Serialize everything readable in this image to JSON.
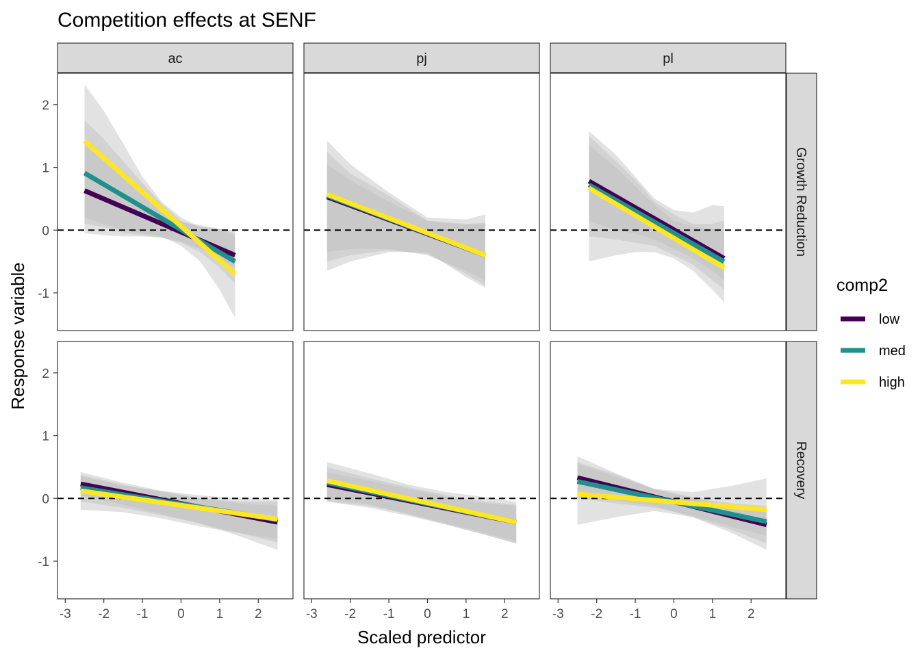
{
  "chart_data": {
    "type": "line",
    "title": "Competition effects at SENF",
    "xlabel": "Scaled predictor",
    "ylabel": "Response variable",
    "xlim": [
      -3.2,
      2.9
    ],
    "ylim": [
      -1.6,
      2.5
    ],
    "x_ticks": [
      -3,
      -2,
      -1,
      0,
      1,
      2
    ],
    "y_ticks": [
      -1,
      0,
      1,
      2
    ],
    "x_tick_labels": [
      "-3",
      "-2",
      "-1",
      "0",
      "1",
      "2"
    ],
    "y_tick_labels": [
      "-1",
      "0",
      "1",
      "2"
    ],
    "reference_line_y": 0,
    "grid": false,
    "facet_columns": [
      "ac",
      "pj",
      "pl"
    ],
    "facet_rows": [
      "Growth Reduction",
      "Recovery"
    ],
    "legend": {
      "title": "comp2",
      "placement": "right",
      "entries": [
        {
          "name": "low",
          "color": "#440154"
        },
        {
          "name": "med",
          "color": "#21908C"
        },
        {
          "name": "high",
          "color": "#FDE725"
        }
      ]
    },
    "band_color": "#bebebe",
    "panels": [
      {
        "column": "ac",
        "row": "Growth Reduction",
        "series": [
          {
            "name": "low",
            "x": [
              -2.5,
              1.4
            ],
            "y": [
              0.63,
              -0.4
            ],
            "band": {
              "x": [
                -2.5,
                -2.0,
                -1.5,
                -1.0,
                -0.5,
                0,
                0.5,
                1.0,
                1.4
              ],
              "lower": [
                -0.05,
                -0.08,
                -0.1,
                -0.1,
                -0.12,
                -0.18,
                -0.3,
                -0.45,
                -0.6
              ],
              "upper": [
                1.35,
                1.1,
                0.85,
                0.6,
                0.35,
                0.12,
                0.08,
                0.02,
                -0.05
              ]
            }
          },
          {
            "name": "med",
            "x": [
              -2.5,
              1.4
            ],
            "y": [
              0.91,
              -0.5
            ],
            "band": {
              "x": [
                -2.5,
                -2.0,
                -1.5,
                -1.0,
                -0.5,
                0,
                0.5,
                1.0,
                1.4
              ],
              "lower": [
                0.1,
                0.05,
                -0.05,
                -0.08,
                -0.12,
                -0.2,
                -0.35,
                -0.6,
                -0.85
              ],
              "upper": [
                1.75,
                1.45,
                1.1,
                0.75,
                0.42,
                0.15,
                0.05,
                0.0,
                -0.1
              ]
            }
          },
          {
            "name": "high",
            "x": [
              -2.5,
              1.4
            ],
            "y": [
              1.42,
              -0.7
            ],
            "band": {
              "x": [
                -2.5,
                -2.0,
                -1.5,
                -1.0,
                -0.5,
                0,
                0.5,
                1.0,
                1.4
              ],
              "lower": [
                0.2,
                0.1,
                0.0,
                -0.05,
                -0.1,
                -0.25,
                -0.5,
                -0.95,
                -1.4
              ],
              "upper": [
                2.32,
                1.9,
                1.38,
                0.85,
                0.45,
                0.2,
                0.05,
                0.02,
                0.0
              ]
            }
          }
        ]
      },
      {
        "column": "pj",
        "row": "Growth Reduction",
        "series": [
          {
            "name": "low",
            "x": [
              -2.6,
              1.5
            ],
            "y": [
              0.53,
              -0.4
            ],
            "band": {
              "x": [
                -2.6,
                -2.0,
                -1.0,
                0,
                1.0,
                1.5
              ],
              "lower": [
                -0.35,
                -0.3,
                -0.3,
                -0.4,
                -0.65,
                -0.8
              ],
              "upper": [
                1.05,
                0.8,
                0.45,
                0.15,
                0.08,
                0.1
              ]
            }
          },
          {
            "name": "med",
            "x": [
              -2.6,
              1.5
            ],
            "y": [
              0.55,
              -0.4
            ],
            "band": {
              "x": [
                -2.6,
                -2.0,
                -1.0,
                0,
                1.0,
                1.5
              ],
              "lower": [
                -0.5,
                -0.4,
                -0.32,
                -0.38,
                -0.7,
                -0.88
              ],
              "upper": [
                1.25,
                0.9,
                0.55,
                0.15,
                0.1,
                0.12
              ]
            }
          },
          {
            "name": "high",
            "x": [
              -2.6,
              1.5
            ],
            "y": [
              0.57,
              -0.4
            ],
            "band": {
              "x": [
                -2.6,
                -2.0,
                -1.0,
                0,
                1.0,
                1.5
              ],
              "lower": [
                -0.65,
                -0.5,
                -0.35,
                -0.35,
                -0.75,
                -0.92
              ],
              "upper": [
                1.43,
                1.05,
                0.6,
                0.2,
                0.17,
                0.25
              ]
            }
          }
        ]
      },
      {
        "column": "pl",
        "row": "Growth Reduction",
        "series": [
          {
            "name": "low",
            "x": [
              -2.2,
              1.3
            ],
            "y": [
              0.78,
              -0.45
            ],
            "band": {
              "x": [
                -2.2,
                -1.5,
                -1.0,
                -0.5,
                0,
                0.5,
                1.0,
                1.3
              ],
              "lower": [
                0.15,
                0.0,
                -0.05,
                -0.15,
                -0.3,
                -0.45,
                -0.65,
                -0.8
              ],
              "upper": [
                1.35,
                1.0,
                0.7,
                0.4,
                0.15,
                0.05,
                0.02,
                0.0
              ]
            }
          },
          {
            "name": "med",
            "x": [
              -2.2,
              1.3
            ],
            "y": [
              0.72,
              -0.5
            ],
            "band": {
              "x": [
                -2.2,
                -1.5,
                -1.0,
                -0.5,
                0,
                0.5,
                1.0,
                1.3
              ],
              "lower": [
                -0.1,
                -0.15,
                -0.2,
                -0.25,
                -0.4,
                -0.55,
                -0.8,
                -0.95
              ],
              "upper": [
                1.5,
                1.1,
                0.8,
                0.45,
                0.25,
                0.1,
                0.1,
                0.15
              ]
            }
          },
          {
            "name": "high",
            "x": [
              -2.2,
              1.3
            ],
            "y": [
              0.67,
              -0.6
            ],
            "band": {
              "x": [
                -2.2,
                -1.5,
                -1.0,
                -0.5,
                0,
                0.5,
                1.0,
                1.3
              ],
              "lower": [
                -0.5,
                -0.4,
                -0.35,
                -0.35,
                -0.45,
                -0.65,
                -0.95,
                -1.15
              ],
              "upper": [
                1.58,
                1.2,
                0.85,
                0.5,
                0.32,
                0.28,
                0.4,
                0.38
              ]
            }
          }
        ]
      },
      {
        "column": "ac",
        "row": "Recovery",
        "series": [
          {
            "name": "low",
            "x": [
              -2.6,
              2.5
            ],
            "y": [
              0.23,
              -0.38
            ],
            "band": {
              "x": [
                -2.6,
                -1.5,
                -0.5,
                0.5,
                1.5,
                2.5
              ],
              "lower": [
                0.05,
                -0.1,
                -0.25,
                -0.4,
                -0.6,
                -0.82
              ],
              "upper": [
                0.42,
                0.25,
                0.12,
                0.0,
                -0.08,
                -0.12
              ]
            }
          },
          {
            "name": "med",
            "x": [
              -2.6,
              2.5
            ],
            "y": [
              0.17,
              -0.34
            ],
            "band": {
              "x": [
                -2.6,
                -1.5,
                -0.5,
                0.5,
                1.5,
                2.5
              ],
              "lower": [
                -0.05,
                -0.15,
                -0.27,
                -0.4,
                -0.55,
                -0.7
              ],
              "upper": [
                0.38,
                0.22,
                0.1,
                0.0,
                -0.05,
                -0.05
              ]
            }
          },
          {
            "name": "high",
            "x": [
              -2.6,
              2.5
            ],
            "y": [
              0.12,
              -0.33
            ],
            "band": {
              "x": [
                -2.6,
                -1.5,
                -0.5,
                0.5,
                1.5,
                2.5
              ],
              "lower": [
                -0.18,
                -0.22,
                -0.32,
                -0.45,
                -0.55,
                -0.65
              ],
              "upper": [
                0.35,
                0.2,
                0.12,
                0.05,
                0.0,
                -0.02
              ]
            }
          }
        ]
      },
      {
        "column": "pj",
        "row": "Recovery",
        "series": [
          {
            "name": "low",
            "x": [
              -2.6,
              2.3
            ],
            "y": [
              0.22,
              -0.38
            ],
            "band": {
              "x": [
                -2.6,
                -1.5,
                -0.5,
                0.5,
                1.5,
                2.3
              ],
              "lower": [
                0.0,
                -0.1,
                -0.25,
                -0.4,
                -0.55,
                -0.68
              ],
              "upper": [
                0.42,
                0.28,
                0.15,
                0.02,
                -0.08,
                -0.12
              ]
            }
          },
          {
            "name": "med",
            "x": [
              -2.6,
              2.3
            ],
            "y": [
              0.25,
              -0.38
            ],
            "band": {
              "x": [
                -2.6,
                -1.5,
                -0.5,
                0.5,
                1.5,
                2.3
              ],
              "lower": [
                -0.05,
                -0.12,
                -0.25,
                -0.42,
                -0.58,
                -0.72
              ],
              "upper": [
                0.5,
                0.32,
                0.18,
                0.05,
                -0.05,
                -0.1
              ]
            }
          },
          {
            "name": "high",
            "x": [
              -2.6,
              2.3
            ],
            "y": [
              0.28,
              -0.38
            ],
            "band": {
              "x": [
                -2.6,
                -1.5,
                -0.5,
                0.5,
                1.5,
                2.3
              ],
              "lower": [
                -0.05,
                -0.15,
                -0.28,
                -0.42,
                -0.58,
                -0.72
              ],
              "upper": [
                0.58,
                0.4,
                0.22,
                0.1,
                0.02,
                -0.05
              ]
            }
          }
        ]
      },
      {
        "column": "pl",
        "row": "Recovery",
        "series": [
          {
            "name": "low",
            "x": [
              -2.5,
              2.4
            ],
            "y": [
              0.33,
              -0.42
            ],
            "band": {
              "x": [
                -2.5,
                -1.5,
                -0.5,
                0.5,
                1.5,
                2.4
              ],
              "lower": [
                0.1,
                -0.03,
                -0.12,
                -0.3,
                -0.5,
                -0.72
              ],
              "upper": [
                0.58,
                0.38,
                0.15,
                0.0,
                -0.12,
                -0.18
              ]
            }
          },
          {
            "name": "med",
            "x": [
              -2.5,
              2.4
            ],
            "y": [
              0.27,
              -0.37
            ],
            "band": {
              "x": [
                -2.5,
                -1.5,
                -0.5,
                0.5,
                1.5,
                2.4
              ],
              "lower": [
                0.0,
                -0.08,
                -0.15,
                -0.28,
                -0.45,
                -0.6
              ],
              "upper": [
                0.55,
                0.35,
                0.15,
                0.02,
                -0.08,
                -0.12
              ]
            }
          },
          {
            "name": "high",
            "x": [
              -2.5,
              2.4
            ],
            "y": [
              0.07,
              -0.18
            ],
            "band": {
              "x": [
                -2.5,
                -1.5,
                -0.5,
                0.5,
                1.5,
                2.4
              ],
              "lower": [
                -0.42,
                -0.3,
                -0.2,
                -0.3,
                -0.55,
                -0.82
              ],
              "upper": [
                0.67,
                0.4,
                0.15,
                0.1,
                0.2,
                0.32
              ]
            }
          }
        ]
      }
    ]
  }
}
